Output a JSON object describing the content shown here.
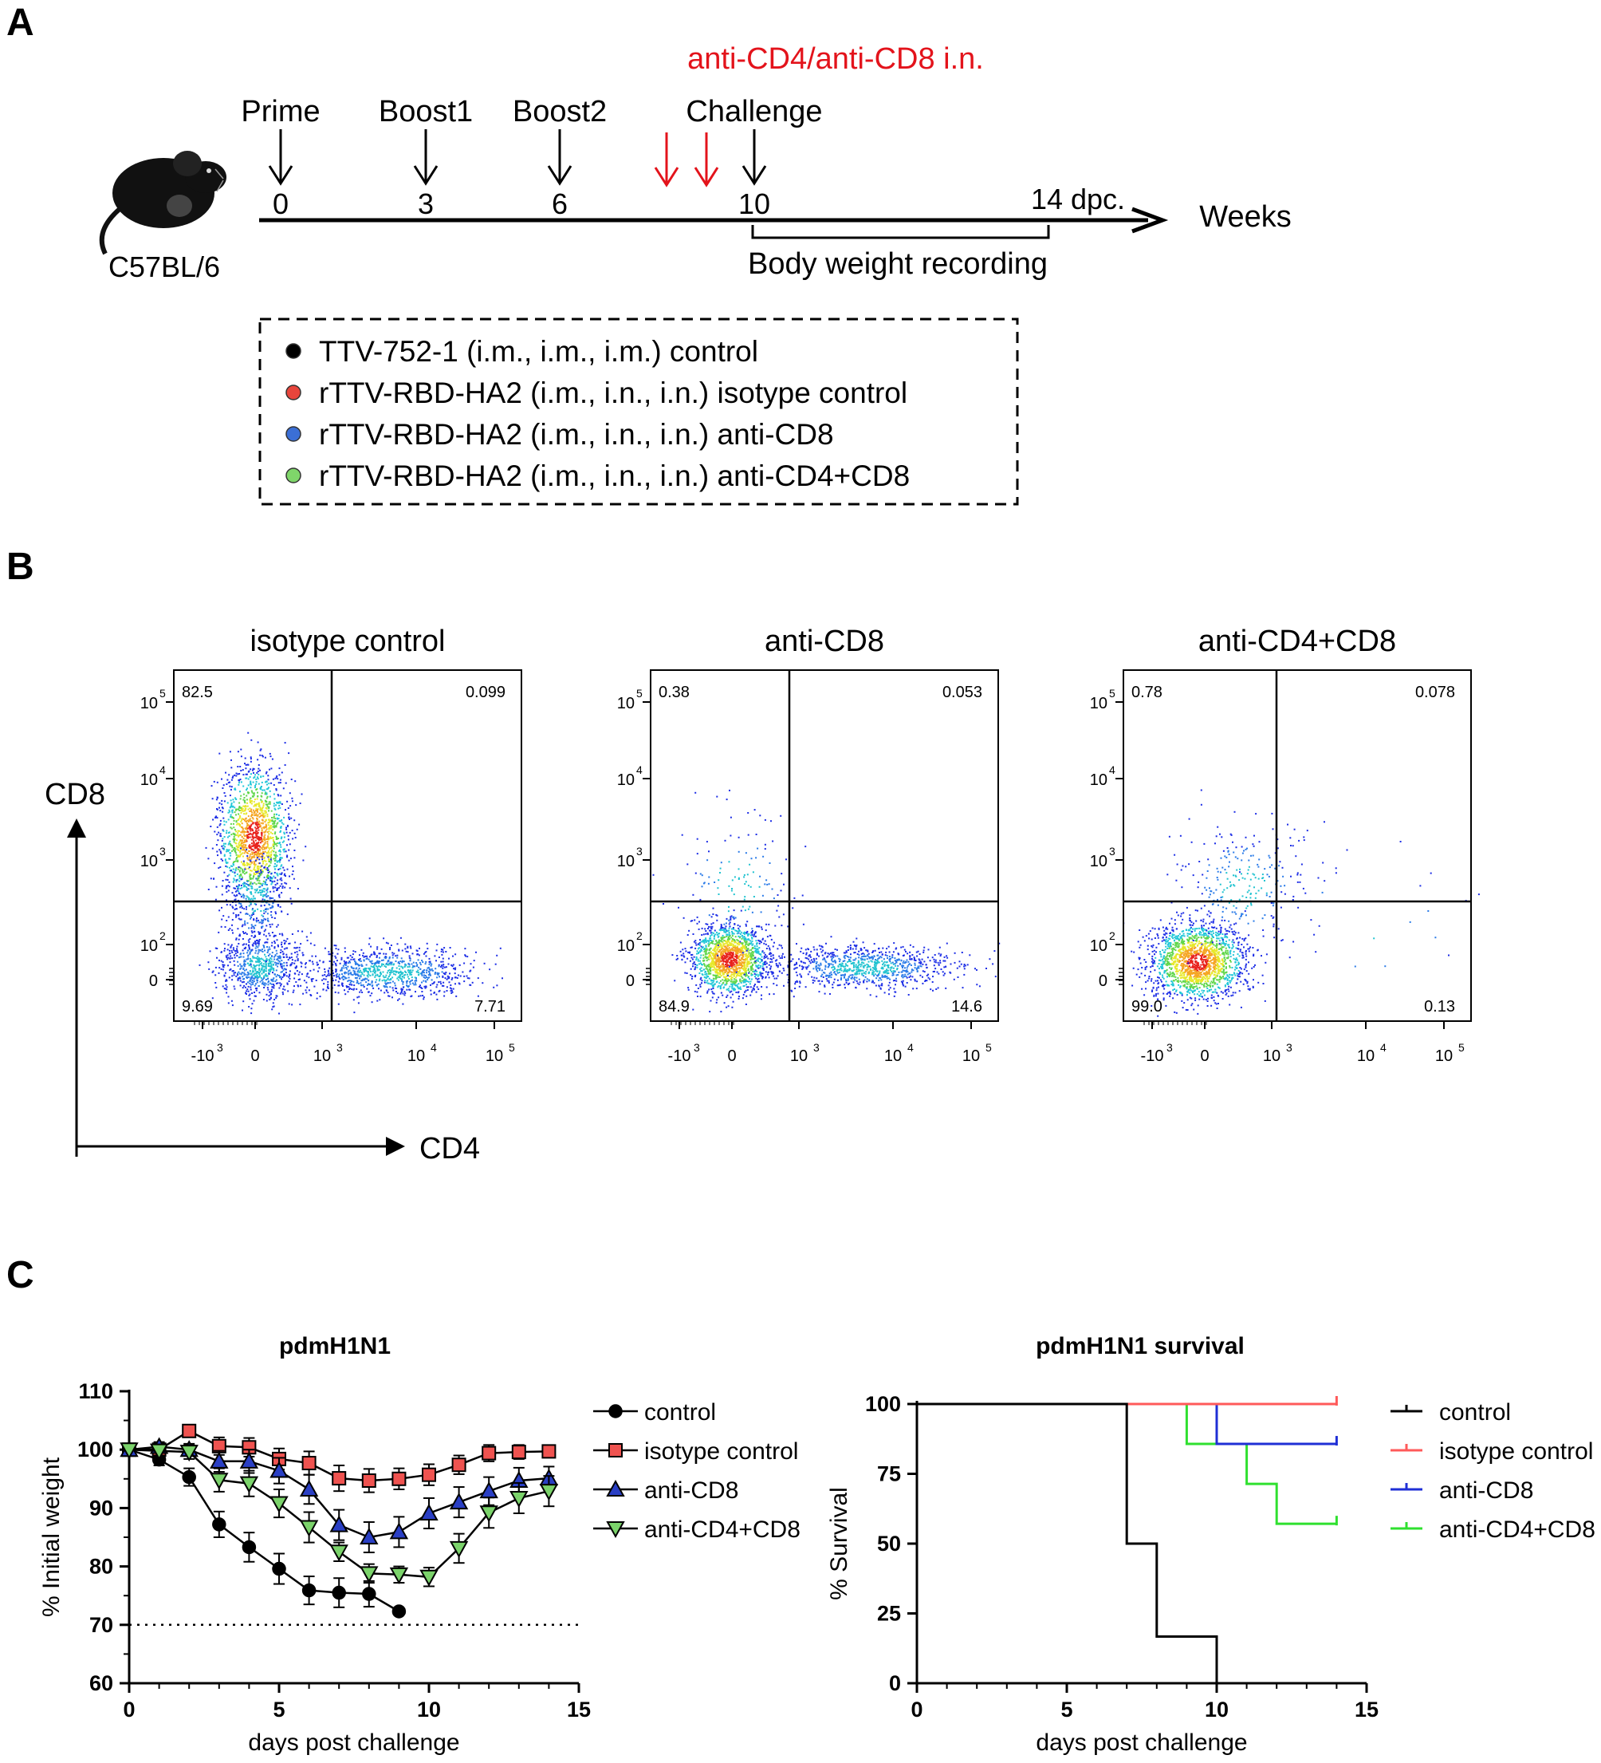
{
  "panels": {
    "a": "A",
    "b": "B",
    "c": "C"
  },
  "timeline": {
    "depletion_label": "anti-CD4/anti-CD8 i.n.",
    "strain": "C57BL/6",
    "events": [
      {
        "label": "Prime",
        "week": "0"
      },
      {
        "label": "Boost1",
        "week": "3"
      },
      {
        "label": "Boost2",
        "week": "6"
      },
      {
        "label": "Challenge",
        "week": "10"
      }
    ],
    "end_label": "14 dpc.",
    "axis_label": "Weeks",
    "recording_label": "Body weight recording"
  },
  "groups": {
    "items": [
      {
        "text": "TTV-752-1 (i.m., i.m., i.m.)  control",
        "color": "#000000"
      },
      {
        "text": "rTTV-RBD-HA2 (i.m., i.n., i.n.)  isotype control",
        "color": "#e8453c"
      },
      {
        "text": "rTTV-RBD-HA2 (i.m., i.n., i.n.)  anti-CD8",
        "color": "#3b6fd6"
      },
      {
        "text": "rTTV-RBD-HA2 (i.m., i.n., i.n.)  anti-CD4+CD8",
        "color": "#7fd66a"
      }
    ]
  },
  "flow": {
    "y_axis": "CD8",
    "x_axis": "CD4",
    "x_ticks": [
      "-10",
      "0",
      "10",
      "10",
      "10"
    ],
    "x_tick_exps": [
      "3",
      "",
      "3",
      "4",
      "5"
    ],
    "y_ticks": [
      "0",
      "10",
      "10",
      "10",
      "10"
    ],
    "y_tick_exps": [
      "",
      "2",
      "3",
      "4",
      "5"
    ],
    "plots": [
      {
        "title": "isotype control",
        "ul": "82.5",
        "ur": "0.099",
        "ll": "9.69",
        "lr": "7.71"
      },
      {
        "title": "anti-CD8",
        "ul": "0.38",
        "ur": "0.053",
        "ll": "84.9",
        "lr": "14.6"
      },
      {
        "title": "anti-CD4+CD8",
        "ul": "0.78",
        "ur": "0.078",
        "ll": "99.0",
        "lr": "0.13"
      }
    ]
  },
  "chart_data": [
    {
      "type": "line",
      "title": "pdmH1N1",
      "xlabel": "days post challenge",
      "ylabel": "% Initial weight",
      "xlim": [
        0,
        15
      ],
      "ylim": [
        60,
        110
      ],
      "x_ticks": [
        "0",
        "5",
        "10",
        "15"
      ],
      "y_ticks": [
        "60",
        "70",
        "80",
        "90",
        "100",
        "110"
      ],
      "reference_line": 70,
      "series": [
        {
          "name": "control",
          "color": "#000000",
          "fill": "#000000",
          "marker": "circle",
          "x": [
            0,
            1,
            2,
            3,
            4,
            5,
            6,
            7,
            8,
            9
          ],
          "y": [
            100,
            98.3,
            95.3,
            87.2,
            83.3,
            79.6,
            75.9,
            75.5,
            75.3,
            72.3
          ],
          "err": [
            0,
            1,
            1.5,
            2.2,
            2.5,
            2.6,
            2.4,
            2.5,
            2.2,
            0
          ]
        },
        {
          "name": "isotype control",
          "color": "#000000",
          "fill": "#ef5350",
          "marker": "square",
          "x": [
            0,
            1,
            2,
            3,
            4,
            5,
            6,
            7,
            8,
            9,
            10,
            11,
            12,
            13,
            14
          ],
          "y": [
            100,
            100,
            103.2,
            100.6,
            100.4,
            98.4,
            97.7,
            95.1,
            94.7,
            95.0,
            95.7,
            97.4,
            99.4,
            99.6,
            99.7
          ],
          "err": [
            0,
            0.8,
            1,
            1.5,
            1.6,
            1.8,
            2,
            2.2,
            2,
            1.8,
            1.8,
            1.6,
            1.4,
            1.2,
            1
          ]
        },
        {
          "name": "anti-CD8",
          "color": "#000000",
          "fill": "#2a3fc4",
          "marker": "triangle-up",
          "x": [
            0,
            1,
            2,
            3,
            4,
            5,
            6,
            7,
            8,
            9,
            10,
            11,
            12,
            13,
            14
          ],
          "y": [
            100,
            100.5,
            100,
            98.0,
            98.0,
            96.4,
            93.2,
            87.1,
            85.0,
            85.9,
            89.1,
            91.0,
            92.9,
            94.7,
            95.1
          ],
          "err": [
            0,
            0.8,
            1,
            1.8,
            2,
            2.2,
            2.5,
            2.6,
            2.6,
            2.6,
            2.6,
            2.6,
            2.4,
            2.2,
            2
          ]
        },
        {
          "name": "anti-CD4+CD8",
          "color": "#000000",
          "fill": "#7bd36b",
          "marker": "triangle-down",
          "x": [
            0,
            1,
            2,
            3,
            4,
            5,
            6,
            7,
            8,
            9,
            10,
            11,
            12,
            13,
            14
          ],
          "y": [
            100,
            99.8,
            99.6,
            94.8,
            94.2,
            90.8,
            86.7,
            82.5,
            78.8,
            78.6,
            78.2,
            83.1,
            89.2,
            91.7,
            92.9
          ],
          "err": [
            0,
            0.8,
            1.2,
            2,
            2.2,
            2.4,
            2.6,
            1.6,
            1.6,
            1.4,
            1.6,
            2.5,
            2.6,
            2.6,
            2.6
          ]
        }
      ]
    },
    {
      "type": "line",
      "title": "pdmH1N1 survival",
      "xlabel": "days post challenge",
      "ylabel": "% Survival",
      "xlim": [
        0,
        15
      ],
      "ylim": [
        0,
        100
      ],
      "x_ticks": [
        "0",
        "5",
        "10",
        "15"
      ],
      "y_ticks": [
        "0",
        "25",
        "50",
        "75",
        "100"
      ],
      "series": [
        {
          "name": "control",
          "color": "#000000",
          "steps": [
            [
              0,
              100
            ],
            [
              7,
              50
            ],
            [
              8,
              16.7
            ],
            [
              10,
              0
            ]
          ],
          "end": 10
        },
        {
          "name": "isotype control",
          "color": "#ff5a5a",
          "steps": [
            [
              0,
              100
            ]
          ],
          "end": 14
        },
        {
          "name": "anti-CD8",
          "color": "#1f2fd6",
          "steps": [
            [
              0,
              100
            ],
            [
              10,
              85.7
            ]
          ],
          "end": 14
        },
        {
          "name": "anti-CD4+CD8",
          "color": "#2fe02f",
          "steps": [
            [
              0,
              100
            ],
            [
              9,
              85.7
            ],
            [
              11,
              71.4
            ],
            [
              12,
              57.1
            ]
          ],
          "end": 14
        }
      ]
    }
  ]
}
